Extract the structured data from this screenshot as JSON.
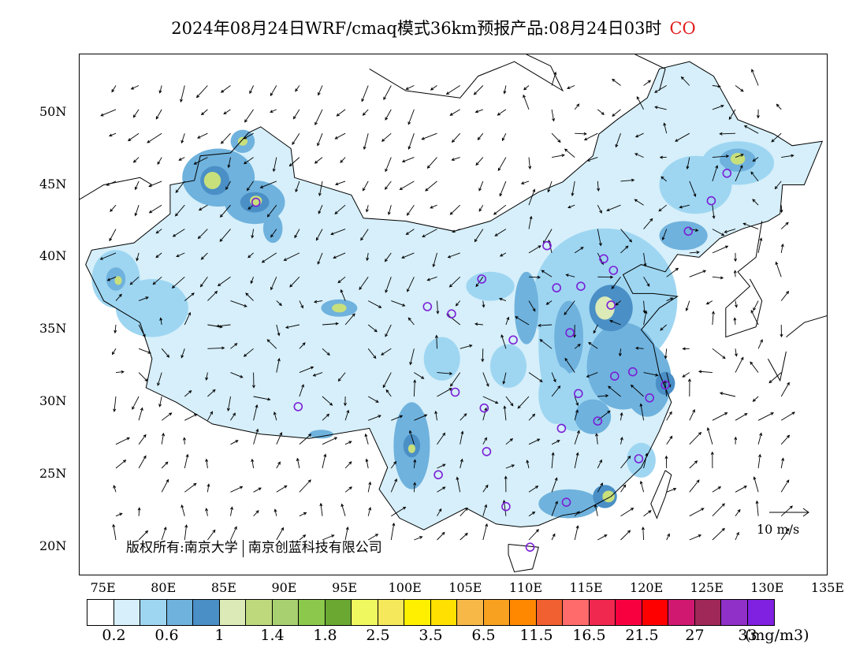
{
  "title": {
    "text": "2024年08月24日WRF/cmaq模式36km预报产品:08月24日03时",
    "species": "CO"
  },
  "map": {
    "lat_labels": [
      "50N",
      "45N",
      "40N",
      "35N",
      "30N",
      "25N",
      "20N"
    ],
    "lon_labels": [
      "75E",
      "80E",
      "85E",
      "90E",
      "95E",
      "100E",
      "105E",
      "110E",
      "115E",
      "120E",
      "125E",
      "130E",
      "135E"
    ],
    "copyright_left": "版权所有:南京大学",
    "copyright_right": "南京创蓝科技有限公司",
    "wind_scale_label": "10 m/s",
    "regions": {
      "fill_colors": [
        "#d6effa",
        "#9ed6f2",
        "#6fb2dd",
        "#4a8fc6",
        "#dceab8",
        "#c8e07c"
      ],
      "stations_color": "#7a1fd6"
    }
  },
  "colorbar": {
    "colors": [
      "#ffffff",
      "#d6effa",
      "#9ed6f2",
      "#6fb2dd",
      "#4a8fc6",
      "#dceab8",
      "#bdd97c",
      "#a8d070",
      "#8cc84c",
      "#6aa832",
      "#f0f860",
      "#f5e85a",
      "#fff000",
      "#ffe000",
      "#f8b848",
      "#f8a020",
      "#ff8800",
      "#f06030",
      "#ff6a6a",
      "#f02850",
      "#f80040",
      "#ff0000",
      "#d01870",
      "#a02858",
      "#9030c8",
      "#8020e0"
    ],
    "labels": [
      "0.2",
      "0.6",
      "1",
      "1.4",
      "1.8",
      "2.5",
      "3.5",
      "6.5",
      "11.5",
      "16.5",
      "21.5",
      "27",
      "33"
    ],
    "unit": "(mg/m3)"
  }
}
